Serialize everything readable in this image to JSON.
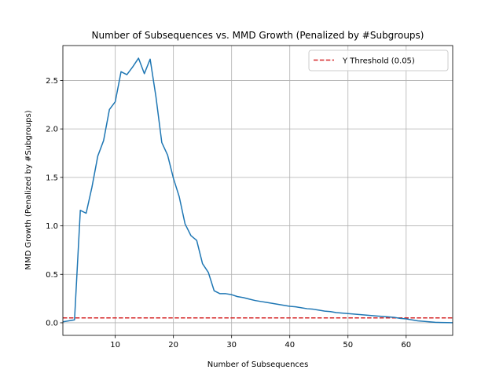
{
  "chart_data": {
    "type": "line",
    "title": "Number of Subsequences vs. MMD Growth (Penalized by #Subgroups)",
    "xlabel": "Number of Subsequences",
    "ylabel": "MMD Growth (Penalized by #Subgroups)",
    "xlim": [
      1,
      68
    ],
    "ylim": [
      -0.13,
      2.86
    ],
    "x_ticks": [
      10,
      20,
      30,
      40,
      50,
      60
    ],
    "y_ticks": [
      0.0,
      0.5,
      1.0,
      1.5,
      2.0,
      2.5
    ],
    "x_tick_labels": [
      "10",
      "20",
      "30",
      "40",
      "50",
      "60"
    ],
    "y_tick_labels": [
      "0.0",
      "0.5",
      "1.0",
      "1.5",
      "2.0",
      "2.5"
    ],
    "grid": true,
    "legend_position": "top-right",
    "series": [
      {
        "color": "#1f77b4",
        "x": [
          1,
          2,
          3,
          4,
          5,
          6,
          7,
          8,
          9,
          10,
          11,
          12,
          13,
          14,
          15,
          16,
          17,
          18,
          19,
          20,
          21,
          22,
          23,
          24,
          25,
          26,
          27,
          28,
          29,
          30,
          31,
          32,
          33,
          34,
          35,
          36,
          37,
          38,
          39,
          40,
          41,
          42,
          43,
          44,
          45,
          46,
          47,
          48,
          49,
          50,
          51,
          52,
          53,
          54,
          55,
          56,
          57,
          58,
          59,
          60,
          61,
          62,
          63,
          64,
          65,
          66,
          67,
          68
        ],
        "values": [
          0.01,
          0.02,
          0.03,
          1.16,
          1.13,
          1.4,
          1.72,
          1.88,
          2.2,
          2.28,
          2.59,
          2.56,
          2.64,
          2.73,
          2.57,
          2.72,
          2.33,
          1.86,
          1.73,
          1.49,
          1.3,
          1.02,
          0.9,
          0.85,
          0.61,
          0.52,
          0.33,
          0.3,
          0.3,
          0.29,
          0.27,
          0.26,
          0.245,
          0.23,
          0.22,
          0.21,
          0.2,
          0.19,
          0.18,
          0.17,
          0.165,
          0.155,
          0.145,
          0.14,
          0.13,
          0.12,
          0.115,
          0.105,
          0.1,
          0.095,
          0.09,
          0.085,
          0.08,
          0.075,
          0.07,
          0.065,
          0.06,
          0.055,
          0.045,
          0.04,
          0.03,
          0.02,
          0.015,
          0.01,
          0.005,
          0.003,
          0.002,
          0.001
        ]
      }
    ],
    "threshold": {
      "name": "Y Threshold (0.05)",
      "value": 0.05,
      "color": "#d62728"
    }
  }
}
